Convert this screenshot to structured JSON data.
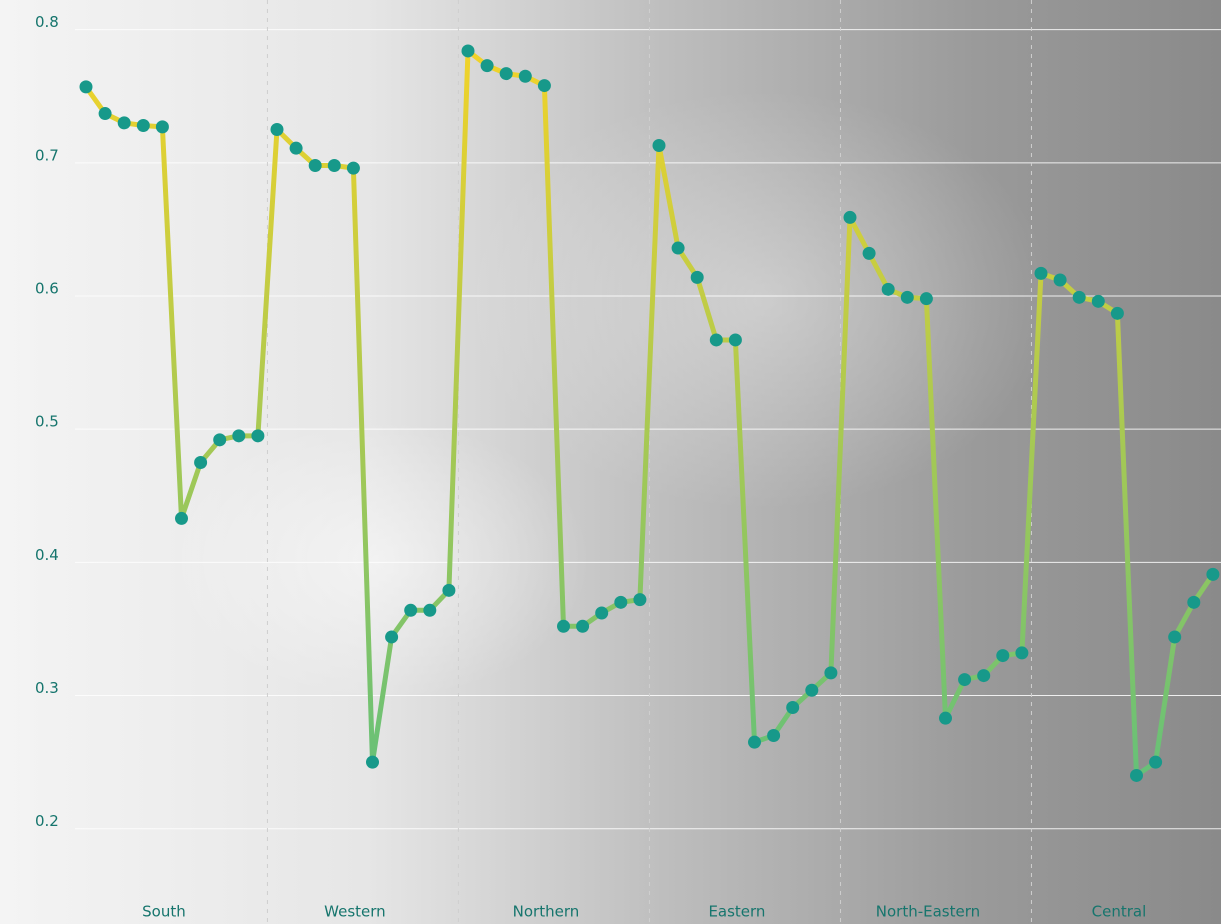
{
  "chart_data": {
    "type": "line",
    "categories": [
      "South",
      "Western",
      "Northern",
      "Eastern",
      "North-Eastern",
      "Central"
    ],
    "values": [
      [
        0.757,
        0.737,
        0.73,
        0.728,
        0.727,
        0.433,
        0.475,
        0.492,
        0.495,
        0.495
      ],
      [
        0.725,
        0.711,
        0.698,
        0.698,
        0.696,
        0.25,
        0.344,
        0.364,
        0.364,
        0.379
      ],
      [
        0.784,
        0.773,
        0.767,
        0.765,
        0.758,
        0.352,
        0.352,
        0.362,
        0.37,
        0.372
      ],
      [
        0.713,
        0.636,
        0.614,
        0.567,
        0.567,
        0.265,
        0.27,
        0.291,
        0.304,
        0.317
      ],
      [
        0.659,
        0.632,
        0.605,
        0.599,
        0.598,
        0.283,
        0.312,
        0.315,
        0.33,
        0.332
      ],
      [
        0.617,
        0.612,
        0.599,
        0.596,
        0.587,
        0.24,
        0.25,
        0.344,
        0.37,
        0.391
      ]
    ],
    "ylim": [
      0.16,
      0.82
    ],
    "yticks": [
      0.2,
      0.3,
      0.4,
      0.5,
      0.6,
      0.7,
      0.8
    ],
    "grid": true,
    "line_gradient": [
      "#f5d327",
      "#5cbf7e"
    ],
    "marker_color": "#17998a"
  }
}
